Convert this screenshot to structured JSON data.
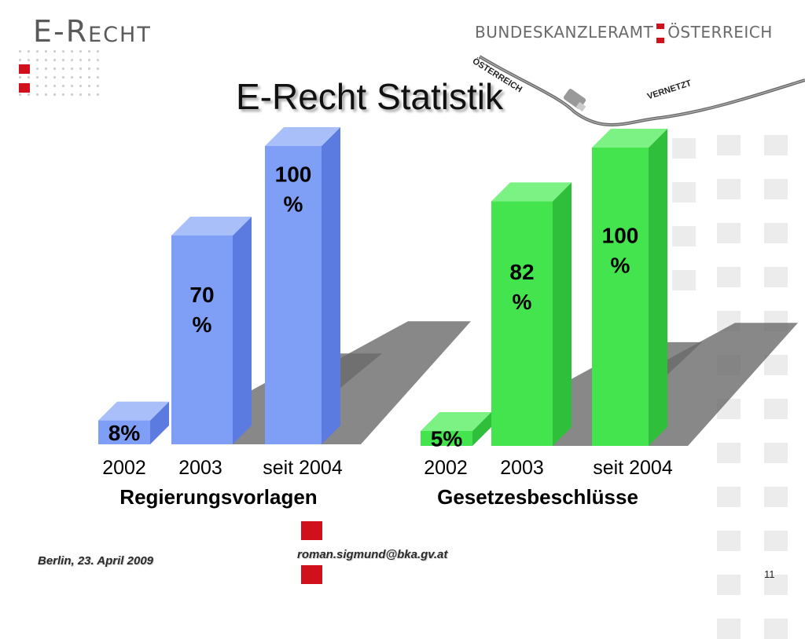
{
  "header": {
    "logo_left": "E-Recht",
    "logo_right_1": "BUNDESKANZLERAMT",
    "logo_right_2": "ÖSTERREICH",
    "title": "E-Recht Statistik",
    "cable_label_1": "ÖSTERREICH",
    "cable_label_2": "VERNETZT"
  },
  "footer": {
    "left": "Berlin, 23. April 2009",
    "email": "roman.sigmund@bka.gv.at",
    "page": "11"
  },
  "colors": {
    "red_accent": "#d0101a",
    "blue_bar": "#7f9ef6",
    "green_bar": "#44e44e"
  },
  "chart_data": [
    {
      "type": "bar",
      "title": "Regierungsvorlagen",
      "categories": [
        "2002",
        "2003",
        "seit 2004"
      ],
      "values": [
        8,
        70,
        100
      ],
      "labels": [
        "8%",
        "70\n%",
        "100\n%"
      ],
      "ylim": [
        0,
        100
      ],
      "unit": "%",
      "color": "#7f9ef6"
    },
    {
      "type": "bar",
      "title": "Gesetzesbeschlüsse",
      "categories": [
        "2002",
        "2003",
        "seit 2004"
      ],
      "values": [
        5,
        82,
        100
      ],
      "labels": [
        "5%",
        "82\n%",
        "100\n%"
      ],
      "ylim": [
        0,
        100
      ],
      "unit": "%",
      "color": "#44e44e"
    }
  ]
}
